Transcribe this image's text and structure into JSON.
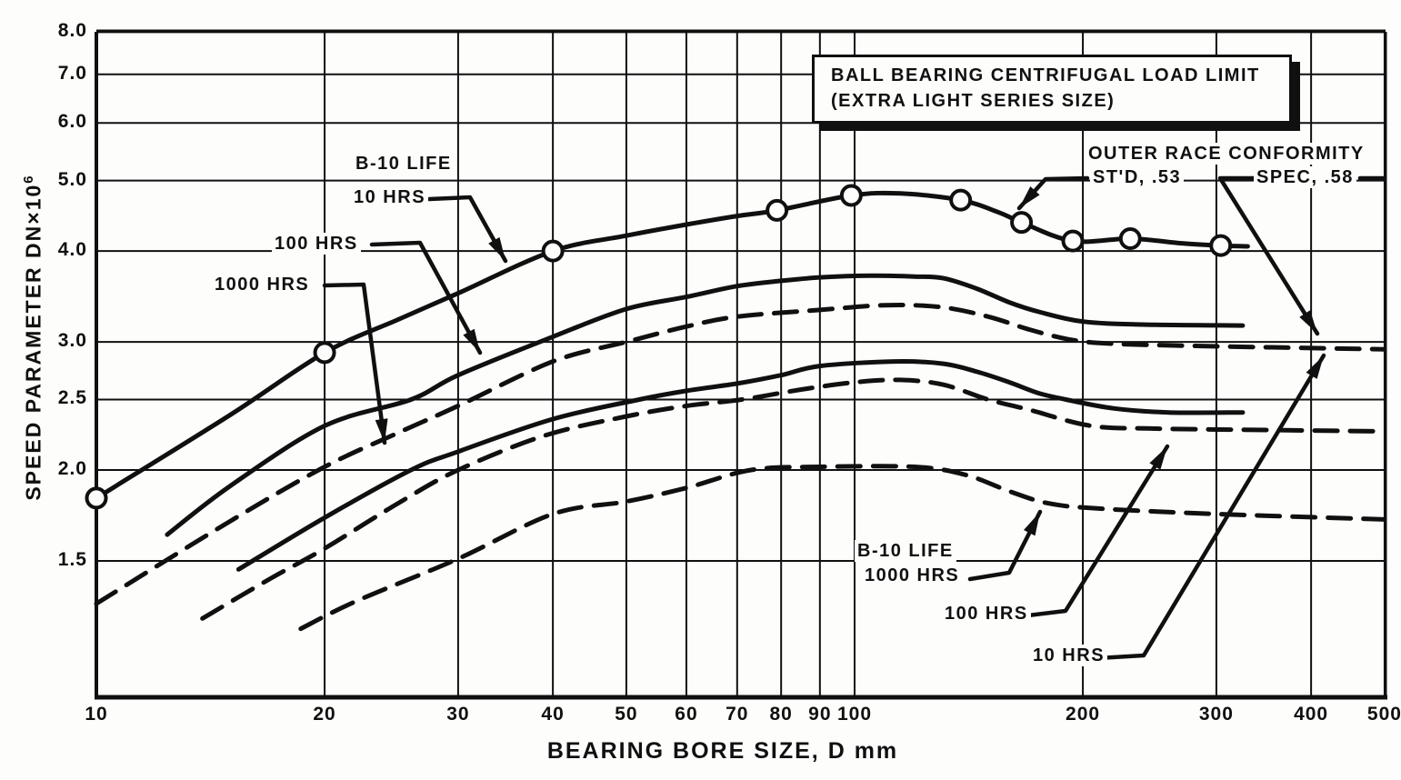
{
  "chart_data": {
    "type": "line",
    "title": "BALL BEARING CENTRIFUGAL LOAD LIMIT",
    "subtitle": "(EXTRA LIGHT SERIES SIZE)",
    "xlabel": "BEARING BORE SIZE, D mm",
    "ylabel": "SPEED PARAMETER DN×10",
    "ylabel_sup": "6",
    "x_scale": "log",
    "y_scale": "log",
    "xlim": [
      10,
      500
    ],
    "ylim": [
      1,
      8
    ],
    "grid": true,
    "x_ticks": [
      {
        "v": 10,
        "label": "10"
      },
      {
        "v": 20,
        "label": "20"
      },
      {
        "v": 30,
        "label": "30"
      },
      {
        "v": 40,
        "label": "40"
      },
      {
        "v": 50,
        "label": "50"
      },
      {
        "v": 60,
        "label": "60"
      },
      {
        "v": 70,
        "label": "70"
      },
      {
        "v": 80,
        "label": "80"
      },
      {
        "v": 90,
        "label": "90"
      },
      {
        "v": 100,
        "label": "100"
      },
      {
        "v": 200,
        "label": "200"
      },
      {
        "v": 300,
        "label": "300"
      },
      {
        "v": 400,
        "label": "400"
      },
      {
        "v": 500,
        "label": "500"
      }
    ],
    "y_ticks": [
      {
        "v": 8.0,
        "label": "8.0"
      },
      {
        "v": 7.0,
        "label": "7.0"
      },
      {
        "v": 6.0,
        "label": "6.0"
      },
      {
        "v": 5.0,
        "label": "5.0"
      },
      {
        "v": 4.0,
        "label": "4.0"
      },
      {
        "v": 3.0,
        "label": "3.0"
      },
      {
        "v": 2.5,
        "label": "2.5"
      },
      {
        "v": 2.0,
        "label": "2.0"
      },
      {
        "v": 1.5,
        "label": "1.5"
      }
    ],
    "series": [
      {
        "id": "std-10hrs",
        "life": "10 HRS",
        "conformity": "ST'D, .53",
        "style": "solid",
        "markers": true,
        "marker_x": [
          10,
          20,
          40,
          79,
          99,
          138,
          166,
          194,
          231,
          304
        ],
        "points": [
          [
            10,
            1.83
          ],
          [
            15,
            2.38
          ],
          [
            20,
            2.9
          ],
          [
            25,
            3.22
          ],
          [
            30,
            3.5
          ],
          [
            40,
            4.0
          ],
          [
            50,
            4.2
          ],
          [
            60,
            4.35
          ],
          [
            70,
            4.47
          ],
          [
            79,
            4.55
          ],
          [
            99,
            4.77
          ],
          [
            115,
            4.8
          ],
          [
            138,
            4.7
          ],
          [
            155,
            4.52
          ],
          [
            166,
            4.38
          ],
          [
            194,
            4.13
          ],
          [
            231,
            4.16
          ],
          [
            270,
            4.1
          ],
          [
            304,
            4.07
          ],
          [
            330,
            4.06
          ]
        ]
      },
      {
        "id": "std-100hrs",
        "life": "100 HRS",
        "conformity": "ST'D, .53",
        "style": "solid",
        "markers": false,
        "points": [
          [
            12.4,
            1.63
          ],
          [
            15,
            1.9
          ],
          [
            20,
            2.3
          ],
          [
            26,
            2.5
          ],
          [
            30,
            2.7
          ],
          [
            40,
            3.05
          ],
          [
            50,
            3.33
          ],
          [
            60,
            3.46
          ],
          [
            70,
            3.58
          ],
          [
            80,
            3.64
          ],
          [
            90,
            3.68
          ],
          [
            105,
            3.7
          ],
          [
            120,
            3.69
          ],
          [
            131,
            3.67
          ],
          [
            145,
            3.55
          ],
          [
            160,
            3.4
          ],
          [
            175,
            3.3
          ],
          [
            200,
            3.2
          ],
          [
            240,
            3.17
          ],
          [
            325,
            3.16
          ]
        ]
      },
      {
        "id": "std-1000hrs",
        "life": "1000 HRS",
        "conformity": "ST'D, .53",
        "style": "solid",
        "markers": false,
        "points": [
          [
            15.4,
            1.46
          ],
          [
            20,
            1.72
          ],
          [
            26,
            2.0
          ],
          [
            30,
            2.12
          ],
          [
            40,
            2.35
          ],
          [
            52,
            2.5
          ],
          [
            60,
            2.57
          ],
          [
            70,
            2.63
          ],
          [
            80,
            2.7
          ],
          [
            90,
            2.78
          ],
          [
            113,
            2.82
          ],
          [
            131,
            2.8
          ],
          [
            145,
            2.73
          ],
          [
            160,
            2.64
          ],
          [
            175,
            2.55
          ],
          [
            190,
            2.5
          ],
          [
            220,
            2.43
          ],
          [
            260,
            2.4
          ],
          [
            325,
            2.4
          ]
        ]
      },
      {
        "id": "spec-10hrs",
        "life": "10 HRS",
        "conformity": "SPEC, .58",
        "style": "dashed",
        "markers": false,
        "points": [
          [
            10,
            1.31
          ],
          [
            15,
            1.7
          ],
          [
            20,
            2.02
          ],
          [
            25,
            2.25
          ],
          [
            30,
            2.45
          ],
          [
            40,
            2.82
          ],
          [
            50,
            3.0
          ],
          [
            60,
            3.15
          ],
          [
            70,
            3.25
          ],
          [
            90,
            3.32
          ],
          [
            110,
            3.37
          ],
          [
            130,
            3.35
          ],
          [
            150,
            3.25
          ],
          [
            170,
            3.12
          ],
          [
            190,
            3.03
          ],
          [
            210,
            2.99
          ],
          [
            250,
            2.97
          ],
          [
            350,
            2.95
          ],
          [
            500,
            2.93
          ]
        ]
      },
      {
        "id": "spec-100hrs",
        "life": "100 HRS",
        "conformity": "SPEC, .58",
        "style": "dashed",
        "markers": false,
        "points": [
          [
            13.8,
            1.25
          ],
          [
            17,
            1.42
          ],
          [
            20,
            1.56
          ],
          [
            25,
            1.8
          ],
          [
            30,
            2.0
          ],
          [
            39,
            2.23
          ],
          [
            50,
            2.37
          ],
          [
            60,
            2.45
          ],
          [
            71,
            2.5
          ],
          [
            85,
            2.58
          ],
          [
            100,
            2.64
          ],
          [
            115,
            2.66
          ],
          [
            131,
            2.62
          ],
          [
            150,
            2.5
          ],
          [
            170,
            2.42
          ],
          [
            205,
            2.3
          ],
          [
            250,
            2.28
          ],
          [
            350,
            2.27
          ],
          [
            500,
            2.26
          ]
        ]
      },
      {
        "id": "spec-1000hrs",
        "life": "1000 HRS",
        "conformity": "SPEC, .58",
        "style": "dashed",
        "markers": false,
        "points": [
          [
            18.6,
            1.21
          ],
          [
            22,
            1.32
          ],
          [
            30,
            1.51
          ],
          [
            40,
            1.74
          ],
          [
            50,
            1.81
          ],
          [
            60,
            1.89
          ],
          [
            73,
            2.0
          ],
          [
            90,
            2.02
          ],
          [
            120,
            2.02
          ],
          [
            140,
            1.97
          ],
          [
            160,
            1.87
          ],
          [
            180,
            1.8
          ],
          [
            210,
            1.77
          ],
          [
            300,
            1.74
          ],
          [
            500,
            1.71
          ]
        ]
      }
    ],
    "annotations": {
      "b10_life_top": "B-10 LIFE",
      "hrs10_top": "10 HRS",
      "hrs100_top": "100 HRS",
      "hrs1000_top": "1000 HRS",
      "outer_race": "OUTER RACE CONFORMITY",
      "std_conformity": "ST'D, .53",
      "spec_conformity": "SPEC, .58",
      "b10_life_bottom": "B-10 LIFE",
      "hrs1000_bottom": "1000 HRS",
      "hrs100_bottom": "100 HRS",
      "hrs10_bottom": "10 HRS"
    },
    "ink_color": "#101010",
    "background_color": "#fdfdfc"
  }
}
